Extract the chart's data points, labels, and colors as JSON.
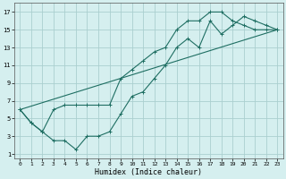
{
  "xlabel": "Humidex (Indice chaleur)",
  "background_color": "#d5efef",
  "grid_color": "#aacfcf",
  "line_color": "#1e6e62",
  "xlim": [
    -0.5,
    23.5
  ],
  "ylim": [
    0.5,
    18
  ],
  "xticks": [
    0,
    1,
    2,
    3,
    4,
    5,
    6,
    7,
    8,
    9,
    10,
    11,
    12,
    13,
    14,
    15,
    16,
    17,
    18,
    19,
    20,
    21,
    22,
    23
  ],
  "yticks": [
    1,
    3,
    5,
    7,
    9,
    11,
    13,
    15,
    17
  ],
  "line1_x": [
    0,
    1,
    2,
    3,
    4,
    5,
    6,
    7,
    8,
    9,
    10,
    11,
    12,
    13,
    14,
    15,
    16,
    17,
    18,
    19,
    20,
    21,
    22,
    23
  ],
  "line1_y": [
    6,
    4.5,
    3.5,
    2.5,
    2.5,
    1.5,
    3,
    3,
    3.5,
    5.5,
    7.5,
    8,
    9.5,
    11,
    13,
    14,
    13,
    16,
    14.5,
    15.5,
    16.5,
    16,
    15.5,
    15
  ],
  "line2_x": [
    0,
    1,
    2,
    3,
    4,
    5,
    6,
    7,
    8,
    9,
    10,
    11,
    12,
    13,
    14,
    15,
    16,
    17,
    18,
    19,
    20,
    21,
    22,
    23
  ],
  "line2_y": [
    6,
    4.5,
    3.5,
    6,
    6.5,
    6.5,
    6.5,
    6.5,
    6.5,
    9.5,
    10.5,
    11.5,
    12.5,
    13,
    15,
    16,
    16,
    17,
    17,
    16,
    15.5,
    15,
    15,
    15
  ],
  "line3_x": [
    0,
    23
  ],
  "line3_y": [
    6,
    15
  ]
}
